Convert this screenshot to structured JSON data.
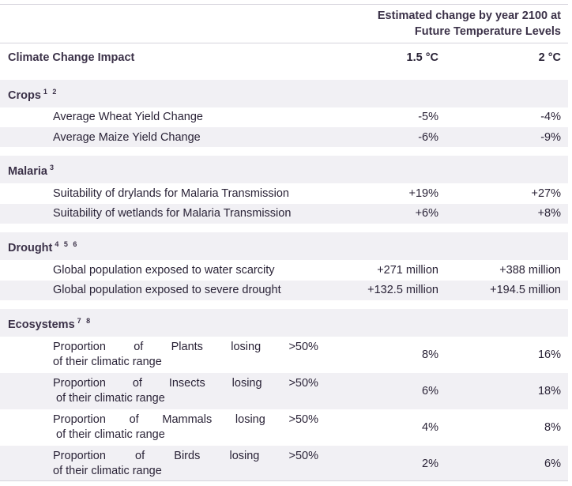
{
  "header": {
    "title_line1": "Estimated change by year 2100 at",
    "title_line2": "Future Temperature Levels"
  },
  "columns": {
    "impact": "Climate Change Impact",
    "col1": "1.5 °C",
    "col2": "2 °C"
  },
  "sections": {
    "crops": {
      "title": "Crops",
      "refs": "1 2",
      "rows": [
        {
          "label": "Average Wheat Yield Change",
          "v1": "-5%",
          "v2": "-4%"
        },
        {
          "label": "Average Maize Yield Change",
          "v1": "-6%",
          "v2": "-9%"
        }
      ]
    },
    "malaria": {
      "title": "Malaria",
      "refs": "3",
      "rows": [
        {
          "label": "Suitability of drylands for Malaria Transmission",
          "v1": "+19%",
          "v2": "+27%"
        },
        {
          "label": "Suitability of wetlands for Malaria Transmission",
          "v1": "+6%",
          "v2": "+8%"
        }
      ]
    },
    "drought": {
      "title": "Drought",
      "refs": "4 5 6",
      "rows": [
        {
          "label": "Global population exposed to water scarcity",
          "v1": "+271 million",
          "v2": "+388 million"
        },
        {
          "label": "Global population exposed to severe drought",
          "v1": "+132.5 million",
          "v2": "+194.5 million"
        }
      ]
    },
    "ecosystems": {
      "title": "Ecosystems",
      "refs": "7 8",
      "rows": [
        {
          "w1": "Proportion",
          "w2": "of",
          "w3": "Plants",
          "w4": "losing",
          "w5": ">50%",
          "line2": "of their climatic range",
          "v1": "8%",
          "v2": "16%"
        },
        {
          "w1": "Proportion",
          "w2": "of",
          "w3": "Insects",
          "w4": "losing",
          "w5": ">50%",
          "line2": "of their climatic range",
          "v1": "6%",
          "v2": "18%"
        },
        {
          "w1": "Proportion",
          "w2": "of",
          "w3": "Mammals",
          "w4": "losing",
          "w5": ">50%",
          "line2": "of their climatic range",
          "v1": "4%",
          "v2": "8%"
        },
        {
          "w1": "Proportion",
          "w2": "of",
          "w3": "Birds",
          "w4": "losing",
          "w5": ">50%",
          "line2": "of their climatic range",
          "v1": "2%",
          "v2": "6%"
        }
      ]
    }
  }
}
